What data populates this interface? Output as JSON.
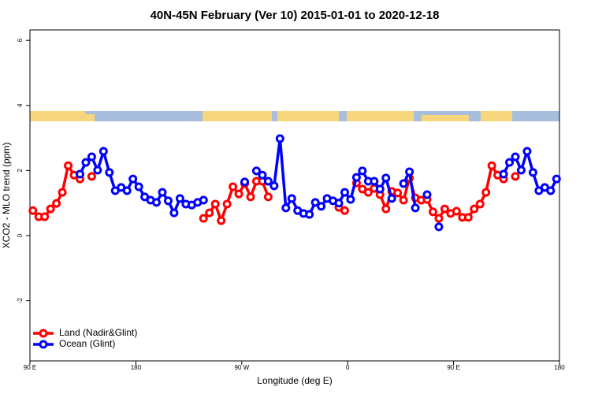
{
  "chart_data": {
    "type": "line",
    "title": "40N-45N February (Ver 10)   2015-01-01 to 2020-12-18",
    "x_label": "Longitude (deg E)",
    "y_label": "XCO2 - MLO trend (ppm)",
    "x": [
      92.5,
      97.5,
      102.5,
      107.5,
      112.5,
      117.5,
      122.5,
      127.5,
      132.5,
      137.5,
      142.5,
      147.5,
      152.5,
      157.5,
      162.5,
      167.5,
      172.5,
      177.5,
      182.5,
      187.5,
      192.5,
      197.5,
      202.5,
      207.5,
      212.5,
      217.5,
      222.5,
      227.5,
      232.5,
      237.5,
      242.5,
      247.5,
      252.5,
      257.5,
      262.5,
      267.5,
      272.5,
      277.5,
      282.5,
      287.5,
      292.5,
      297.5,
      302.5,
      307.5,
      312.5,
      317.5,
      322.5,
      327.5,
      332.5,
      337.5,
      342.5,
      347.5,
      352.5,
      357.5,
      362.5,
      367.5,
      372.5,
      377.5,
      382.5,
      387.5,
      392.5,
      397.5,
      402.5,
      407.5,
      412.5,
      417.5,
      422.5,
      427.5,
      432.5,
      437.5,
      442.5,
      447.5,
      452.5,
      457.5,
      462.5,
      467.5,
      472.5,
      477.5,
      482.5,
      487.5,
      492.5,
      497.5,
      502.5,
      507.5,
      512.5,
      517.5,
      522.5,
      527.5,
      532.5,
      537.5
    ],
    "series": [
      {
        "name": "Land (Nadir&Glint)",
        "color": "#ff0000",
        "values": [
          0.77,
          0.58,
          0.58,
          0.82,
          0.99,
          1.33,
          2.15,
          1.86,
          1.74,
          null,
          1.82,
          null,
          null,
          null,
          null,
          null,
          null,
          null,
          null,
          null,
          null,
          null,
          null,
          null,
          null,
          null,
          null,
          null,
          null,
          0.53,
          0.7,
          0.97,
          0.46,
          0.97,
          1.5,
          1.28,
          1.6,
          1.19,
          1.67,
          1.67,
          1.19,
          null,
          null,
          null,
          null,
          null,
          null,
          null,
          null,
          null,
          null,
          null,
          0.87,
          0.77,
          null,
          1.62,
          1.43,
          1.33,
          1.45,
          1.26,
          0.82,
          1.36,
          1.31,
          1.09,
          1.77,
          1.16,
          1.09,
          1.11,
          0.73,
          0.53,
          0.82,
          0.68,
          0.75,
          0.56,
          0.56,
          0.82,
          0.97,
          1.33,
          2.15,
          1.86,
          1.74,
          null,
          1.82,
          null,
          null,
          null,
          null,
          null,
          null,
          null
        ]
      },
      {
        "name": "Ocean (Glint)",
        "color": "#0000ff",
        "values": [
          null,
          null,
          null,
          null,
          null,
          null,
          null,
          null,
          1.89,
          2.25,
          2.42,
          2.01,
          2.59,
          1.94,
          1.38,
          1.48,
          1.38,
          1.74,
          1.5,
          1.19,
          1.09,
          1.02,
          1.33,
          1.07,
          0.7,
          1.14,
          0.97,
          0.94,
          1.02,
          1.09,
          null,
          null,
          null,
          null,
          null,
          null,
          1.65,
          null,
          1.99,
          1.86,
          1.67,
          1.53,
          2.98,
          0.85,
          1.14,
          0.77,
          0.68,
          0.65,
          1.02,
          0.9,
          1.14,
          1.07,
          1.0,
          1.33,
          1.11,
          1.79,
          1.99,
          1.67,
          1.67,
          1.43,
          1.77,
          1.14,
          null,
          1.6,
          1.96,
          0.85,
          null,
          1.26,
          null,
          0.27,
          null,
          null,
          null,
          null,
          null,
          null,
          null,
          null,
          null,
          null,
          1.89,
          2.25,
          2.42,
          2.01,
          2.59,
          1.94,
          1.38,
          1.48,
          1.38,
          1.74
        ]
      }
    ],
    "xlim": [
      90,
      540
    ],
    "xticks": [
      {
        "value": 90,
        "label": "90 E"
      },
      {
        "value": 180,
        "label": "180"
      },
      {
        "value": 270,
        "label": "90 W"
      },
      {
        "value": 360,
        "label": "0"
      },
      {
        "value": 450,
        "label": "90 E"
      },
      {
        "value": 540,
        "label": "180"
      }
    ],
    "ylim": [
      -3.85,
      6.32
    ],
    "yticks": [
      -2,
      0,
      2,
      4,
      6
    ],
    "legend": "bottom-left"
  }
}
